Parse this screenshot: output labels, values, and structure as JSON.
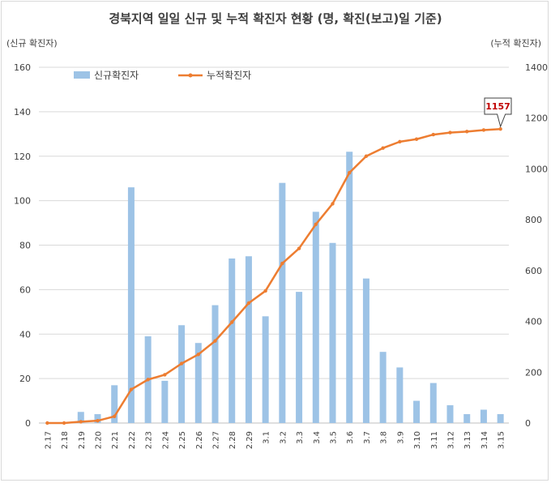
{
  "chart_data": {
    "type": "bar+line",
    "title": "경북지역 일일 신규 및 누적 확진자 현황 (명, 확진(보고)일 기준)",
    "y_left_label": "(신규 확진자)",
    "y_right_label": "(누적 확진자)",
    "y_left_lim": [
      0,
      160
    ],
    "y_left_ticks": [
      "0",
      "20",
      "40",
      "60",
      "80",
      "100",
      "120",
      "140",
      "160"
    ],
    "y_right_lim": [
      0,
      1400
    ],
    "y_right_ticks": [
      "0",
      "200",
      "400",
      "600",
      "800",
      "1000",
      "1200",
      "1400"
    ],
    "categories": [
      "2.17",
      "2.18",
      "2.19",
      "2.20",
      "2.21",
      "2.22",
      "2.23",
      "2.24",
      "2.25",
      "2.26",
      "2.27",
      "2.28",
      "2.29",
      "3.1",
      "3.2",
      "3.3",
      "3.4",
      "3.5",
      "3.6",
      "3.7",
      "3.8",
      "3.9",
      "3.10",
      "3.11",
      "3.12",
      "3.13",
      "3.14",
      "3.15"
    ],
    "series": [
      {
        "name": "신규확진자",
        "type": "bar",
        "axis": "left",
        "color": "#9dc3e6",
        "values": [
          0,
          0,
          5,
          4,
          17,
          106,
          39,
          19,
          44,
          36,
          53,
          74,
          75,
          48,
          108,
          59,
          95,
          81,
          122,
          65,
          32,
          25,
          10,
          18,
          8,
          4,
          6,
          4
        ]
      },
      {
        "name": "누적확진자",
        "type": "line",
        "axis": "right",
        "color": "#ed7d31",
        "values": [
          0,
          0,
          5,
          9,
          26,
          132,
          171,
          190,
          234,
          270,
          323,
          397,
          472,
          520,
          628,
          687,
          782,
          863,
          985,
          1050,
          1082,
          1107,
          1117,
          1135,
          1143,
          1147,
          1153,
          1157
        ]
      }
    ],
    "callout": {
      "label": "1157",
      "color": "#c00000"
    },
    "grid": true,
    "legend": "top-left"
  }
}
